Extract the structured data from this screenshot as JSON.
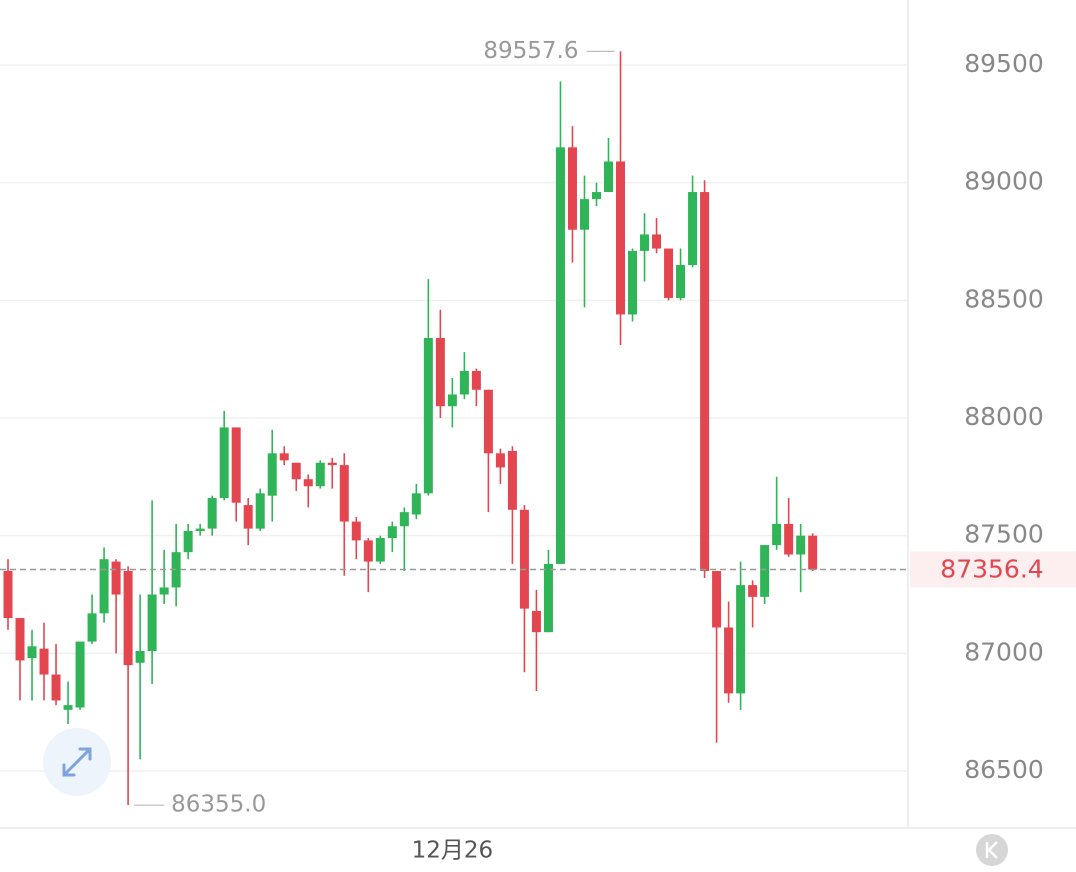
{
  "chart_data": {
    "type": "candlestick",
    "categories": [
      null,
      null,
      null,
      null,
      null,
      null,
      null,
      null,
      null,
      null,
      null,
      null,
      null,
      null,
      null,
      null,
      null,
      null,
      null,
      null,
      null,
      null,
      null,
      null,
      null,
      null,
      null,
      null,
      null,
      null,
      null,
      null,
      null,
      null,
      null,
      null,
      null,
      "12月26",
      null,
      null,
      null,
      null,
      null,
      null,
      null,
      null,
      null,
      null,
      null,
      null,
      null,
      null,
      null,
      null,
      null,
      null,
      null,
      null,
      null,
      null,
      null,
      null,
      null,
      null,
      null,
      null,
      null,
      null
    ],
    "open": [
      87350,
      87150,
      86980,
      87020,
      86910,
      86760,
      86770,
      87050,
      87170,
      87390,
      87350,
      86960,
      87010,
      87250,
      87280,
      87430,
      87520,
      87530,
      87660,
      87960,
      87630,
      87530,
      87670,
      87850,
      87810,
      87740,
      87710,
      87810,
      87800,
      87560,
      87480,
      87390,
      87490,
      87540,
      87590,
      87680,
      88340,
      88050,
      88100,
      88200,
      88120,
      87850,
      87860,
      87610,
      87180,
      87090,
      87380,
      89150,
      88800,
      88930,
      88960,
      89090,
      88440,
      88710,
      88780,
      88720,
      88510,
      88650,
      88960,
      87350,
      87110,
      86830,
      87290,
      87240,
      87460,
      87550,
      87420,
      87500
    ],
    "high": [
      87400,
      87150,
      87100,
      87130,
      87040,
      86880,
      87050,
      87250,
      87450,
      87400,
      87370,
      87250,
      87650,
      87440,
      87550,
      87550,
      87550,
      87670,
      88030,
      87960,
      87660,
      87700,
      87950,
      87880,
      87810,
      87760,
      87820,
      87830,
      87850,
      87580,
      87490,
      87500,
      87560,
      87620,
      87720,
      88590,
      88460,
      88170,
      88280,
      88210,
      88120,
      87870,
      87880,
      87630,
      87270,
      87440,
      89430,
      89240,
      89030,
      89000,
      89190,
      89557.6,
      88720,
      88870,
      88850,
      88720,
      88720,
      89030,
      89010,
      87350,
      87220,
      87390,
      87310,
      87460,
      87750,
      87660,
      87550,
      87510
    ],
    "low": [
      87100,
      86800,
      86800,
      86800,
      86780,
      86700,
      86760,
      87040,
      87130,
      87000,
      86355,
      86550,
      86870,
      87210,
      87200,
      87400,
      87500,
      87500,
      87650,
      87560,
      87460,
      87520,
      87560,
      87800,
      87690,
      87620,
      87700,
      87700,
      87330,
      87400,
      87260,
      87380,
      87430,
      87350,
      87570,
      87670,
      88000,
      87960,
      88080,
      88050,
      87600,
      87720,
      87380,
      86920,
      86840,
      87090,
      87380,
      88660,
      88470,
      88900,
      88960,
      88310,
      88410,
      88580,
      88700,
      88500,
      88500,
      88640,
      87320,
      86620,
      86790,
      86760,
      87110,
      87210,
      87440,
      87410,
      87260,
      87350
    ],
    "close": [
      87150,
      86970,
      87030,
      86910,
      86800,
      86780,
      87050,
      87170,
      87400,
      87250,
      86950,
      87010,
      87250,
      87280,
      87430,
      87520,
      87530,
      87660,
      87960,
      87640,
      87530,
      87680,
      87850,
      87820,
      87740,
      87710,
      87810,
      87800,
      87560,
      87480,
      87390,
      87490,
      87540,
      87600,
      87680,
      88340,
      88050,
      88100,
      88200,
      88120,
      87850,
      87790,
      87610,
      87190,
      87090,
      87380,
      89150,
      88800,
      88930,
      88960,
      89090,
      88440,
      88710,
      88780,
      88720,
      88510,
      88650,
      88960,
      87350,
      87110,
      86830,
      87290,
      87240,
      87460,
      87550,
      87420,
      87500,
      87356.4
    ],
    "up_color": "#2fb457",
    "down_color": "#e4464f",
    "ylim": [
      86258,
      89776
    ],
    "yticks": [
      86500,
      87000,
      87500,
      88000,
      88500,
      89000,
      89500
    ],
    "grid": true,
    "last_price": 87356.4,
    "extremes": [
      {
        "value": 89557.6,
        "label": "89557.6"
      },
      {
        "value": 86355,
        "label": "86355.0"
      }
    ]
  }
}
